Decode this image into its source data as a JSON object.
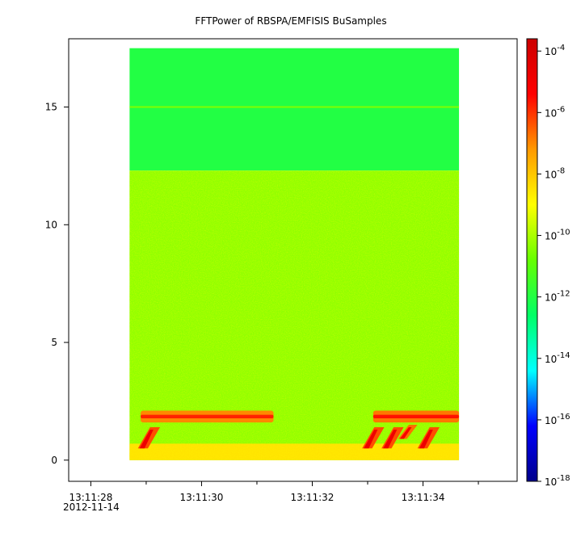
{
  "chart_data": {
    "type": "heatmap",
    "title": "FFTPower of RBSPA/EMFISIS  BuSamples",
    "xlabel": "",
    "ylabel": "",
    "x_ticks": [
      "13:11:28",
      "13:11:30",
      "13:11:32",
      "13:11:34"
    ],
    "x_tick_values_s": [
      0,
      2,
      4,
      6
    ],
    "x_range_s": [
      -0.4,
      7.7
    ],
    "x_date_label": "2012-11-14",
    "y_ticks": [
      "0",
      "5",
      "10",
      "15"
    ],
    "y_tick_values": [
      0,
      5,
      10,
      15
    ],
    "ylim": [
      -0.9,
      17.9
    ],
    "data_extent": {
      "x_start_s": 0.7,
      "x_end_s": 6.65,
      "y_min": 0,
      "y_max": 17.5
    },
    "colorbar": {
      "scale": "log",
      "range_exp": [
        -18,
        -3.6
      ],
      "tick_exponents": [
        -4,
        -6,
        -8,
        -10,
        -12,
        -14,
        -16,
        -18
      ],
      "base_label": "10",
      "colors": [
        "#00008b",
        "#0000ff",
        "#00ffff",
        "#00ff66",
        "#66ff00",
        "#ffff00",
        "#ff9900",
        "#ff0000",
        "#cc0000"
      ]
    },
    "regions": [
      {
        "desc": "upper band",
        "y_from": 12.3,
        "y_to": 17.5,
        "log_power": -12
      },
      {
        "desc": "line",
        "y": 15.0,
        "log_power": -10.5
      },
      {
        "desc": "main band",
        "y_from": 0,
        "y_to": 12.3,
        "log_power": -10.3
      },
      {
        "desc": "bottom band",
        "y_from": 0,
        "y_to": 0.7,
        "log_power": -8.5
      }
    ],
    "bursts": [
      {
        "x_start_s": 0.9,
        "x_end_s": 3.3,
        "y_from": 1.6,
        "y_to": 2.1,
        "log_power": -7
      },
      {
        "x_start_s": 5.1,
        "x_end_s": 6.65,
        "y_from": 1.6,
        "y_to": 2.1,
        "log_power": -6.8
      },
      {
        "x_start_s": 0.85,
        "x_end_s": 1.25,
        "y_from": 0.5,
        "y_to": 1.4,
        "log_power": -4.8
      },
      {
        "x_start_s": 4.9,
        "x_end_s": 5.3,
        "y_from": 0.5,
        "y_to": 1.4,
        "log_power": -4.8
      },
      {
        "x_start_s": 5.25,
        "x_end_s": 5.65,
        "y_from": 0.5,
        "y_to": 1.4,
        "log_power": -4.8
      },
      {
        "x_start_s": 5.55,
        "x_end_s": 5.9,
        "y_from": 0.9,
        "y_to": 1.5,
        "log_power": -5.2
      },
      {
        "x_start_s": 5.9,
        "x_end_s": 6.3,
        "y_from": 0.5,
        "y_to": 1.4,
        "log_power": -4.8
      }
    ]
  }
}
